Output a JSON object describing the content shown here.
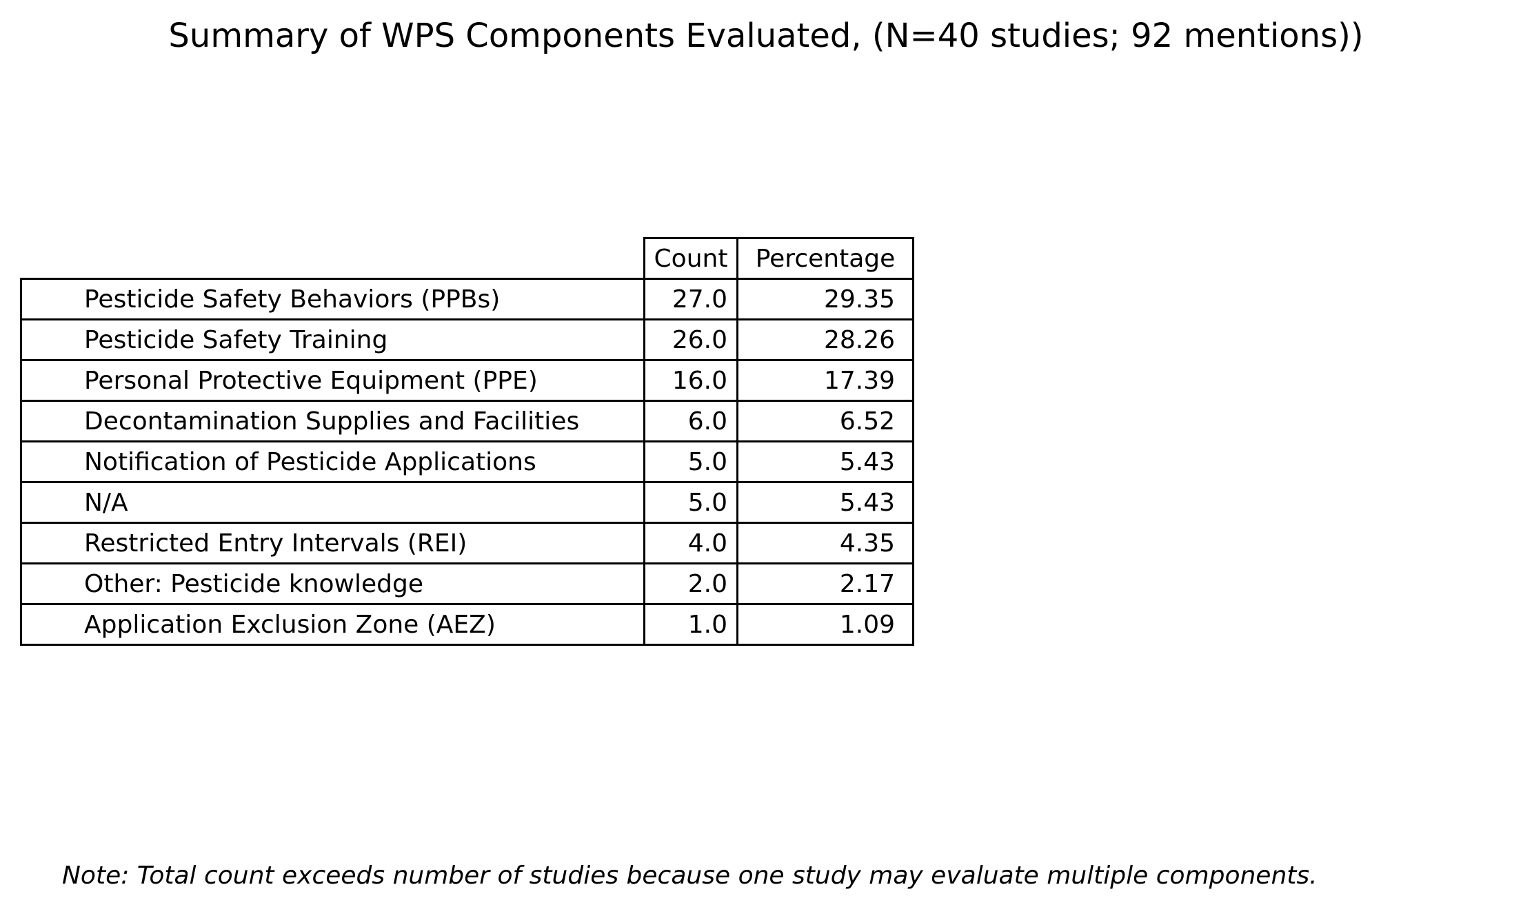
{
  "chart_data": {
    "type": "table",
    "title": "Summary of WPS Components Evaluated, (N=40 studies; 92 mentions))",
    "columns": [
      "Count",
      "Percentage"
    ],
    "rows": [
      {
        "label": "Pesticide Safety Behaviors (PPBs)",
        "count": "27.0",
        "percentage": "29.35"
      },
      {
        "label": "Pesticide Safety Training",
        "count": "26.0",
        "percentage": "28.26"
      },
      {
        "label": "Personal Protective Equipment (PPE)",
        "count": "16.0",
        "percentage": "17.39"
      },
      {
        "label": "Decontamination Supplies and Facilities",
        "count": "6.0",
        "percentage": "6.52"
      },
      {
        "label": "Notification of Pesticide Applications",
        "count": "5.0",
        "percentage": "5.43"
      },
      {
        "label": "N/A",
        "count": "5.0",
        "percentage": "5.43"
      },
      {
        "label": "Restricted Entry Intervals (REI)",
        "count": "4.0",
        "percentage": "4.35"
      },
      {
        "label": "Other: Pesticide knowledge",
        "count": "2.0",
        "percentage": "2.17"
      },
      {
        "label": "Application Exclusion Zone (AEZ)",
        "count": "1.0",
        "percentage": "1.09"
      }
    ],
    "note": "Note: Total count exceeds number of studies because one study may evaluate multiple components."
  }
}
